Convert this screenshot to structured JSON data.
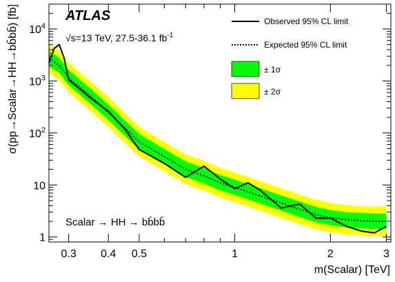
{
  "chart_data": {
    "type": "line",
    "xscale": "log",
    "yscale": "log",
    "xlim": [
      0.26,
      3.1
    ],
    "ylim": [
      0.8,
      30000
    ],
    "grid": false,
    "legend_position": "top-right",
    "xlabel": "m(Scalar) [TeV]",
    "ylabel": "σ(pp→Scalar→HH→bb̄bb̄) [fb]",
    "x_ticks": [
      {
        "value": 0.3,
        "label": "0.3"
      },
      {
        "value": 0.4,
        "label": "0.4"
      },
      {
        "value": 0.5,
        "label": "0.5"
      },
      {
        "value": 1,
        "label": "1"
      },
      {
        "value": 2,
        "label": "2"
      },
      {
        "value": 3,
        "label": "3"
      }
    ],
    "y_ticks": [
      {
        "value": 1,
        "label": "1"
      },
      {
        "value": 10,
        "label": "10"
      },
      {
        "value": 100,
        "label": "10",
        "exp": "2"
      },
      {
        "value": 1000,
        "label": "10",
        "exp": "3"
      },
      {
        "value": 10000,
        "label": "10",
        "exp": "4"
      }
    ],
    "experiment": "ATLAS",
    "energy_prefix": "√s=13 TeV, 27.5-36.1 fb",
    "energy_exp": "-1",
    "process": "Scalar → HH → bb̄bb̄",
    "series": [
      {
        "name": "Observed 95% CL limit",
        "style": "solid",
        "color": "#000000",
        "x": [
          0.26,
          0.27,
          0.28,
          0.29,
          0.3,
          0.35,
          0.4,
          0.45,
          0.5,
          0.6,
          0.7,
          0.8,
          0.9,
          1.0,
          1.1,
          1.2,
          1.4,
          1.6,
          1.8,
          2.0,
          2.25,
          2.5,
          2.75,
          3.0
        ],
        "y": [
          2200,
          4200,
          5000,
          2800,
          1050,
          480,
          260,
          120,
          48,
          26,
          14,
          23,
          13,
          8.5,
          11,
          8,
          3.6,
          4.3,
          2.3,
          2.3,
          1.6,
          1.3,
          1.2,
          1.6
        ]
      },
      {
        "name": "Expected 95% CL limit",
        "style": "dashed",
        "color": "#000000",
        "x": [
          0.26,
          0.28,
          0.3,
          0.35,
          0.4,
          0.45,
          0.5,
          0.6,
          0.7,
          0.8,
          0.9,
          1.0,
          1.2,
          1.4,
          1.6,
          1.8,
          2.0,
          2.25,
          2.5,
          2.75,
          3.0
        ],
        "y": [
          2700,
          2000,
          1150,
          520,
          250,
          125,
          68,
          35,
          20,
          15,
          11,
          9,
          6.2,
          4.5,
          3.4,
          2.7,
          2.35,
          2.15,
          2.05,
          2.0,
          2.0
        ]
      },
      {
        "name": "± 1σ",
        "style": "band",
        "color": "#00ff00",
        "lower": [
          1900,
          1420,
          820,
          370,
          178,
          89,
          48,
          25,
          14.2,
          10.6,
          7.8,
          6.4,
          4.4,
          3.2,
          2.4,
          1.92,
          1.67,
          1.53,
          1.46,
          1.42,
          1.42
        ],
        "upper": [
          3800,
          2800,
          1620,
          730,
          350,
          176,
          96,
          49,
          28.2,
          21.2,
          15.5,
          12.7,
          8.7,
          6.3,
          4.8,
          3.8,
          3.3,
          3.0,
          2.9,
          2.82,
          2.82
        ]
      },
      {
        "name": "± 2σ",
        "style": "band",
        "color": "#ffff00",
        "lower": [
          1400,
          1040,
          600,
          270,
          130,
          65,
          35,
          18.2,
          10.4,
          7.8,
          5.7,
          4.7,
          3.2,
          2.3,
          1.77,
          1.4,
          1.22,
          1.12,
          1.07,
          1.04,
          1.04
        ],
        "upper": [
          5200,
          3850,
          2210,
          1000,
          480,
          240,
          131,
          67,
          38.5,
          28.9,
          21.2,
          17.3,
          11.9,
          8.6,
          6.5,
          5.2,
          4.5,
          4.1,
          3.9,
          3.85,
          3.85
        ]
      }
    ]
  }
}
